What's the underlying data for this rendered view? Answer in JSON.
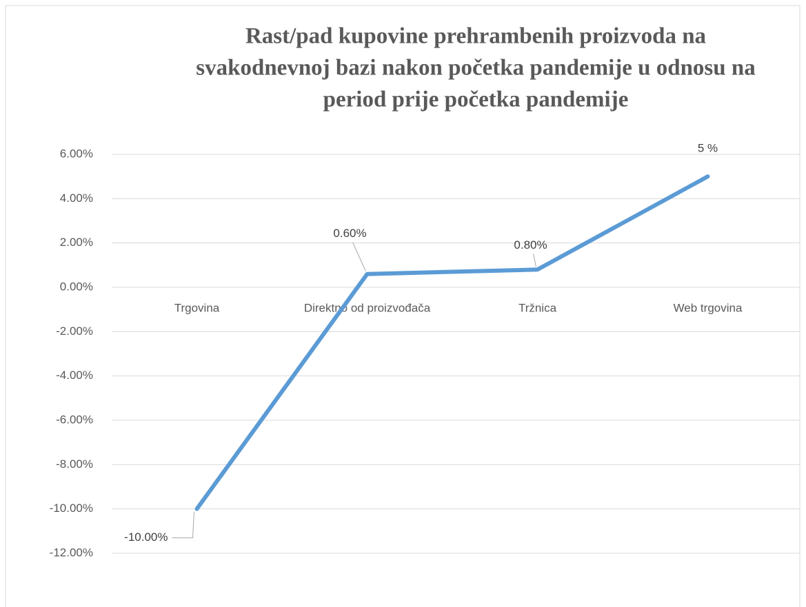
{
  "chart_data": {
    "type": "line",
    "title": [
      "Rast/pad kupovine prehrambenih proizvoda na",
      "svakodnevnoj bazi nakon početka pandemije u odnosu na",
      "period prije početka pandemije"
    ],
    "categories": [
      "Trgovina",
      "Direktno od proizvođača",
      "Tržnica",
      "Web trgovina"
    ],
    "series": [
      {
        "name": null,
        "color": "#5b9bd5",
        "values": [
          -10,
          0.6,
          0.8,
          5
        ],
        "value_labels": [
          "-10.00%",
          "0.60%",
          "0.80%",
          "5 %"
        ],
        "value_label_colors": [
          "#ff0000",
          "#404040",
          "#404040",
          "#404040"
        ]
      }
    ],
    "ylim": [
      -12,
      6
    ],
    "yticks": [
      {
        "value": -12,
        "label": "-12.00%"
      },
      {
        "value": -10,
        "label": "-10.00%"
      },
      {
        "value": -8,
        "label": "-8.00%"
      },
      {
        "value": -6,
        "label": "-6.00%"
      },
      {
        "value": -4,
        "label": "-4.00%"
      },
      {
        "value": -2,
        "label": "-2.00%"
      },
      {
        "value": 0,
        "label": "0.00%"
      },
      {
        "value": 2,
        "label": "2.00%"
      },
      {
        "value": 4,
        "label": "4.00%"
      },
      {
        "value": 6,
        "label": "6.00%"
      }
    ],
    "grid": true
  }
}
